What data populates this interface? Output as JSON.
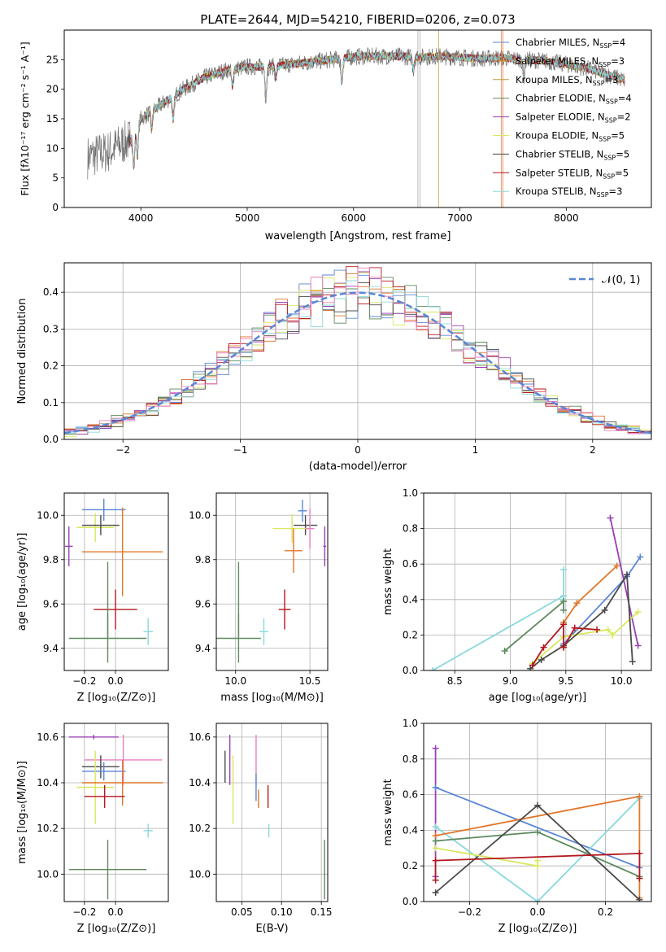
{
  "figure_title": "PLATE=2644, MJD=54210, FIBERID=0206, z=0.073",
  "colors": {
    "Chabrier MILES": "#5b86d6",
    "Salpeter MILES": "#e2762a",
    "Kroupa MILES": "#c29a3b",
    "Chabrier ELODIE": "#5e8a5e",
    "Salpeter ELODIE": "#9b3fb4",
    "Kroupa ELODIE": "#d9e860",
    "Chabrier STELIB": "#4a4a4a",
    "Salpeter STELIB": "#b3171f",
    "Kroupa STELIB": "#8ad8db",
    "Pink": "#e77fbf"
  },
  "chart_data": [
    {
      "id": "spectrum",
      "type": "line",
      "title": "PLATE=2644, MJD=54210, FIBERID=0206, z=0.073",
      "xlabel": "wavelength [Angstrom, rest frame]",
      "ylabel": "Flux [fλ10⁻¹⁷ erg cm⁻² s⁻¹ A⁻¹]",
      "xlim": [
        3280,
        8800
      ],
      "ylim": [
        0,
        30
      ],
      "xticks": [
        "4000",
        "5000",
        "6000",
        "7000",
        "8000"
      ],
      "yticks": [
        "0",
        "5",
        "10",
        "15",
        "20",
        "25"
      ],
      "grid": false,
      "legend_position": "right",
      "continuum": [
        [
          3500,
          8.5
        ],
        [
          3700,
          9.5
        ],
        [
          3900,
          11.5
        ],
        [
          4000,
          15
        ],
        [
          4200,
          17.5
        ],
        [
          4400,
          20
        ],
        [
          4600,
          22
        ],
        [
          4800,
          23.2
        ],
        [
          5000,
          23.8
        ],
        [
          5200,
          23.8
        ],
        [
          5400,
          24.2
        ],
        [
          5600,
          24.6
        ],
        [
          5800,
          25
        ],
        [
          6000,
          25.5
        ],
        [
          6200,
          25.6
        ],
        [
          6400,
          25.6
        ],
        [
          6600,
          25.4
        ],
        [
          6800,
          25.6
        ],
        [
          7000,
          25.4
        ],
        [
          7200,
          25.2
        ],
        [
          7400,
          25.3
        ],
        [
          7600,
          25
        ],
        [
          7800,
          24.8
        ],
        [
          8000,
          24.2
        ],
        [
          8200,
          23.5
        ],
        [
          8400,
          22.4
        ],
        [
          8550,
          21.5
        ]
      ],
      "legend": [
        {
          "label": "Chabrier MILES, N",
          "sub": "SSP",
          "suffix": "=4",
          "color": "#5b86d6"
        },
        {
          "label": "Salpeter MILES, N",
          "sub": "SSP",
          "suffix": "=3",
          "color": "#e2762a"
        },
        {
          "label": "Kroupa MILES, N",
          "sub": "SSP",
          "suffix": "=3",
          "color": "#c29a3b"
        },
        {
          "label": "Chabrier ELODIE, N",
          "sub": "SSP",
          "suffix": "=4",
          "color": "#5e8a5e"
        },
        {
          "label": "Salpeter ELODIE, N",
          "sub": "SSP",
          "suffix": "=2",
          "color": "#9b3fb4"
        },
        {
          "label": "Kroupa ELODIE, N",
          "sub": "SSP",
          "suffix": "=5",
          "color": "#d9e860"
        },
        {
          "label": "Chabrier STELIB, N",
          "sub": "SSP",
          "suffix": "=5",
          "color": "#4a4a4a"
        },
        {
          "label": "Salpeter STELIB, N",
          "sub": "SSP",
          "suffix": "=5",
          "color": "#b3171f"
        },
        {
          "label": "Kroupa STELIB, N",
          "sub": "SSP",
          "suffix": "=3",
          "color": "#8ad8db"
        }
      ]
    },
    {
      "id": "residuals",
      "type": "line",
      "xlabel": "(data-model)/error",
      "ylabel": "Normed distribution",
      "xlim": [
        -2.5,
        2.5
      ],
      "ylim": [
        0,
        0.48
      ],
      "xticks": [
        "−2",
        "−1",
        "0",
        "1",
        "2"
      ],
      "xtick_values": [
        -2,
        -1,
        0,
        1,
        2
      ],
      "yticks": [
        "0.0",
        "0.1",
        "0.2",
        "0.3",
        "0.4"
      ],
      "ytick_values": [
        0,
        0.1,
        0.2,
        0.3,
        0.4
      ],
      "grid": true,
      "legend_position": "top-right",
      "legend_label": "𝒩(0, 1)",
      "bin_width": 0.1,
      "histogram_colors": [
        "#5b86d6",
        "#e2762a",
        "#5e8a5e",
        "#9b3fb4",
        "#d9e860",
        "#4a4a4a",
        "#b3171f",
        "#8ad8db",
        "#e77fbf"
      ]
    },
    {
      "id": "age_vs_Z",
      "type": "scatter",
      "xlabel": "Z [log₁₀(Z/Z⊙)]",
      "ylabel": "age  [log₁₀(age/yr)]",
      "xlim": [
        -0.33,
        0.34
      ],
      "ylim": [
        9.3,
        10.1
      ],
      "xticks": [
        "−0.2",
        "0.0"
      ],
      "xtick_values": [
        -0.2,
        0.0
      ],
      "yticks": [
        "9.4",
        "9.6",
        "9.8",
        "10.0"
      ],
      "ytick_values": [
        9.4,
        9.6,
        9.8,
        10.0
      ],
      "grid": true,
      "points": [
        {
          "color": "#5b86d6",
          "x": -0.075,
          "xerr": 0.14,
          "y": 10.025,
          "yerr": 0.05
        },
        {
          "color": "#d9e860",
          "x": -0.13,
          "xerr": 0.12,
          "y": 9.945,
          "yerr": 0.065
        },
        {
          "color": "#4a4a4a",
          "x": -0.095,
          "xerr": 0.12,
          "y": 9.955,
          "yerr": 0.045
        },
        {
          "color": "#9b3fb4",
          "x": -0.3,
          "xerr": 0.025,
          "y": 9.86,
          "yerr": 0.09
        },
        {
          "color": "#e2762a",
          "x": 0.045,
          "xerr": 0.26,
          "y": 9.835,
          "yerr": 0.2
        },
        {
          "color": "#8ad8db",
          "x": 0.21,
          "xerr": 0.03,
          "y": 9.475,
          "yerr": 0.06
        },
        {
          "color": "#b3171f",
          "x": 0.0,
          "xerr": 0.14,
          "y": 9.575,
          "yerr": 0.09
        },
        {
          "color": "#5e8a5e",
          "x": -0.05,
          "xerr": 0.25,
          "y": 9.445,
          "yerr": 0.11
        },
        {
          "color": "#5e8a5e",
          "x": -0.05,
          "xerr": 0.0,
          "y": 9.62,
          "yerr": 0.17
        }
      ]
    },
    {
      "id": "age_vs_mass",
      "type": "scatter",
      "xlabel": "mass [log₁₀(M/M⊙)]",
      "ylabel": "",
      "xlim": [
        9.87,
        10.62
      ],
      "ylim": [
        9.3,
        10.1
      ],
      "xticks": [
        "10.0",
        "10.5"
      ],
      "xtick_values": [
        10.0,
        10.5
      ],
      "yticks": [
        "9.4",
        "9.6",
        "9.8",
        "10.0"
      ],
      "ytick_values": [
        9.4,
        9.6,
        9.8,
        10.0
      ],
      "grid": true,
      "points": [
        {
          "color": "#5b86d6",
          "x": 10.45,
          "xerr": 0.03,
          "y": 10.02,
          "yerr": 0.05
        },
        {
          "color": "#4a4a4a",
          "x": 10.47,
          "xerr": 0.08,
          "y": 9.955,
          "yerr": 0.045
        },
        {
          "color": "#d9e860",
          "x": 10.38,
          "xerr": 0.13,
          "y": 9.94,
          "yerr": 0.065
        },
        {
          "color": "#9b3fb4",
          "x": 10.6,
          "xerr": 0.01,
          "y": 9.86,
          "yerr": 0.09
        },
        {
          "color": "#e77fbf",
          "x": 10.5,
          "xerr": 0.03,
          "y": 9.94,
          "yerr": 0.09
        },
        {
          "color": "#e2762a",
          "x": 10.39,
          "xerr": 0.06,
          "y": 9.84,
          "yerr": 0.1
        },
        {
          "color": "#8ad8db",
          "x": 10.19,
          "xerr": 0.03,
          "y": 9.475,
          "yerr": 0.06
        },
        {
          "color": "#b3171f",
          "x": 10.33,
          "xerr": 0.04,
          "y": 9.575,
          "yerr": 0.09
        },
        {
          "color": "#5e8a5e",
          "x": 10.02,
          "xerr": 0.15,
          "y": 9.445,
          "yerr": 0.11
        },
        {
          "color": "#5e8a5e",
          "x": 10.02,
          "xerr": 0.0,
          "y": 9.62,
          "yerr": 0.17
        }
      ]
    },
    {
      "id": "weight_vs_age",
      "type": "line",
      "xlabel": "age  [log₁₀(age/yr)]",
      "ylabel": "mass weight",
      "xlim": [
        8.22,
        10.27
      ],
      "ylim": [
        0,
        1.0
      ],
      "xticks": [
        "8.5",
        "9.0",
        "9.5",
        "10.0"
      ],
      "xtick_values": [
        8.5,
        9.0,
        9.5,
        10.0
      ],
      "yticks": [
        "0.0",
        "0.2",
        "0.4",
        "0.6",
        "0.8",
        "1.0"
      ],
      "ytick_values": [
        0,
        0.2,
        0.4,
        0.6,
        0.8,
        1.0
      ],
      "grid": true,
      "series": [
        {
          "color": "#8ad8db",
          "x": [
            8.3,
            9.48,
            9.48,
            9.48
          ],
          "y": [
            0.0,
            0.42,
            0.57,
            0.4
          ]
        },
        {
          "color": "#5e8a5e",
          "x": [
            8.95,
            9.48,
            9.48
          ],
          "y": [
            0.11,
            0.39,
            0.34
          ]
        },
        {
          "color": "#5b86d6",
          "x": [
            9.48,
            10.05,
            10.17
          ],
          "y": [
            0.15,
            0.53,
            0.64
          ]
        },
        {
          "color": "#e2762a",
          "x": [
            9.48,
            9.6,
            9.96
          ],
          "y": [
            0.27,
            0.38,
            0.59
          ]
        },
        {
          "color": "#9b3fb4",
          "x": [
            9.9,
            10.15
          ],
          "y": [
            0.86,
            0.14
          ]
        },
        {
          "color": "#d9e860",
          "x": [
            9.2,
            9.48,
            9.88,
            9.92,
            10.15
          ],
          "y": [
            0.04,
            0.19,
            0.23,
            0.2,
            0.33
          ]
        },
        {
          "color": "#4a4a4a",
          "x": [
            9.18,
            9.28,
            9.48,
            9.85,
            10.05,
            10.1
          ],
          "y": [
            0.01,
            0.06,
            0.14,
            0.34,
            0.54,
            0.05
          ]
        },
        {
          "color": "#b3171f",
          "x": [
            9.2,
            9.3,
            9.48,
            9.48,
            9.58,
            9.78
          ],
          "y": [
            0.03,
            0.13,
            0.26,
            0.13,
            0.24,
            0.23
          ]
        }
      ]
    },
    {
      "id": "mass_vs_Z",
      "type": "scatter",
      "xlabel": "Z [log₁₀(Z/Z⊙)]",
      "ylabel": "mass [log₁₀(M/M⊙)]",
      "xlim": [
        -0.33,
        0.34
      ],
      "ylim": [
        9.88,
        10.66
      ],
      "xticks": [
        "−0.2",
        "0.0"
      ],
      "xtick_values": [
        -0.2,
        0.0
      ],
      "yticks": [
        "10.0",
        "10.2",
        "10.4",
        "10.6"
      ],
      "ytick_values": [
        10.0,
        10.2,
        10.4,
        10.6
      ],
      "grid": true,
      "points": [
        {
          "color": "#9b3fb4",
          "x": -0.14,
          "xerr": 0.16,
          "y": 10.6,
          "yerr": 0.01
        },
        {
          "color": "#e77fbf",
          "x": 0.05,
          "xerr": 0.25,
          "y": 10.5,
          "yerr": 0.11
        },
        {
          "color": "#4a4a4a",
          "x": -0.095,
          "xerr": 0.12,
          "y": 10.47,
          "yerr": 0.05
        },
        {
          "color": "#5b86d6",
          "x": -0.075,
          "xerr": 0.14,
          "y": 10.45,
          "yerr": 0.04
        },
        {
          "color": "#d9e860",
          "x": -0.13,
          "xerr": 0.12,
          "y": 10.38,
          "yerr": 0.16
        },
        {
          "color": "#e2762a",
          "x": 0.045,
          "xerr": 0.26,
          "y": 10.4,
          "yerr": 0.1
        },
        {
          "color": "#b3171f",
          "x": -0.07,
          "xerr": 0.13,
          "y": 10.34,
          "yerr": 0.05
        },
        {
          "color": "#8ad8db",
          "x": 0.21,
          "xerr": 0.03,
          "y": 10.19,
          "yerr": 0.03
        },
        {
          "color": "#5e8a5e",
          "x": -0.05,
          "xerr": 0.25,
          "y": 10.02,
          "yerr": 0.13
        }
      ]
    },
    {
      "id": "mass_vs_EBV",
      "type": "scatter",
      "xlabel": "E(B-V)",
      "ylabel": "",
      "xlim": [
        0.018,
        0.158
      ],
      "ylim": [
        9.88,
        10.66
      ],
      "xticks": [
        "0.05",
        "0.10",
        "0.15"
      ],
      "xtick_values": [
        0.05,
        0.1,
        0.15
      ],
      "yticks": [
        "10.0",
        "10.2",
        "10.4",
        "10.6"
      ],
      "ytick_values": [
        10.0,
        10.2,
        10.4,
        10.6
      ],
      "grid": true,
      "points": [
        {
          "color": "#4a4a4a",
          "x": 0.029,
          "xerr": 0,
          "y": 10.47,
          "yerr": 0.07
        },
        {
          "color": "#9b3fb4",
          "x": 0.035,
          "xerr": 0,
          "y": 10.5,
          "yerr": 0.11
        },
        {
          "color": "#d9e860",
          "x": 0.039,
          "xerr": 0,
          "y": 10.37,
          "yerr": 0.15
        },
        {
          "color": "#e77fbf",
          "x": 0.068,
          "xerr": 0,
          "y": 10.5,
          "yerr": 0.11
        },
        {
          "color": "#5b86d6",
          "x": 0.068,
          "xerr": 0,
          "y": 10.38,
          "yerr": 0.06
        },
        {
          "color": "#e2762a",
          "x": 0.071,
          "xerr": 0,
          "y": 10.33,
          "yerr": 0.04
        },
        {
          "color": "#b3171f",
          "x": 0.083,
          "xerr": 0,
          "y": 10.34,
          "yerr": 0.05
        },
        {
          "color": "#8ad8db",
          "x": 0.084,
          "xerr": 0,
          "y": 10.19,
          "yerr": 0.03
        },
        {
          "color": "#5e8a5e",
          "x": 0.154,
          "xerr": 0,
          "y": 10.02,
          "yerr": 0.13
        }
      ]
    },
    {
      "id": "weight_vs_Z",
      "type": "line",
      "xlabel": "Z [log₁₀(Z/Z⊙)]",
      "ylabel": "mass weight",
      "xlim": [
        -0.335,
        0.335
      ],
      "ylim": [
        0,
        1.0
      ],
      "xticks": [
        "−0.2",
        "0.0",
        "0.2"
      ],
      "xtick_values": [
        -0.2,
        0.0,
        0.2
      ],
      "yticks": [
        "0.0",
        "0.2",
        "0.4",
        "0.6",
        "0.8",
        "1.0"
      ],
      "ytick_values": [
        0,
        0.2,
        0.4,
        0.6,
        0.8,
        1.0
      ],
      "grid": true,
      "series": [
        {
          "color": "#9b3fb4",
          "x": [
            -0.3,
            -0.3
          ],
          "y": [
            0.86,
            0.14
          ]
        },
        {
          "color": "#5b86d6",
          "x": [
            -0.3,
            0.3
          ],
          "y": [
            0.64,
            0.19
          ]
        },
        {
          "color": "#8ad8db",
          "x": [
            -0.3,
            0.0,
            0.3
          ],
          "y": [
            0.42,
            0.0,
            0.58
          ]
        },
        {
          "color": "#e2762a",
          "x": [
            -0.3,
            0.3,
            0.3
          ],
          "y": [
            0.37,
            0.59,
            0.02
          ]
        },
        {
          "color": "#5e8a5e",
          "x": [
            -0.3,
            0.0,
            0.3
          ],
          "y": [
            0.34,
            0.39,
            0.14
          ]
        },
        {
          "color": "#4a4a4a",
          "x": [
            -0.3,
            0.0,
            0.3
          ],
          "y": [
            0.05,
            0.54,
            0.01
          ]
        },
        {
          "color": "#d9e860",
          "x": [
            -0.3,
            0.0,
            0.0
          ],
          "y": [
            0.3,
            0.2,
            0.23
          ]
        },
        {
          "color": "#b3171f",
          "x": [
            -0.3,
            -0.3,
            0.3,
            0.3
          ],
          "y": [
            0.12,
            0.23,
            0.27,
            0.13
          ]
        }
      ]
    }
  ]
}
